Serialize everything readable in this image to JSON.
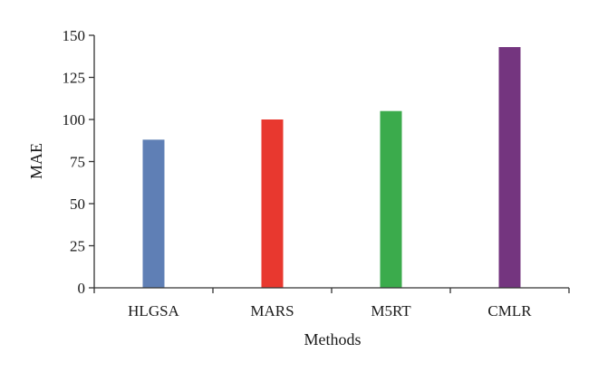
{
  "chart_data": {
    "type": "bar",
    "categories": [
      "HLGSA",
      "MARS",
      "M5RT",
      "CMLR"
    ],
    "values": [
      88,
      100,
      105,
      143
    ],
    "colors": [
      "#5f7fb5",
      "#e8382f",
      "#3bab4c",
      "#74357f"
    ],
    "xlabel": "Methods",
    "ylabel": "MAE",
    "ylim": [
      0,
      150
    ],
    "yticks": [
      0,
      25,
      50,
      75,
      100,
      125,
      150
    ],
    "grid": false,
    "legend": "none"
  }
}
